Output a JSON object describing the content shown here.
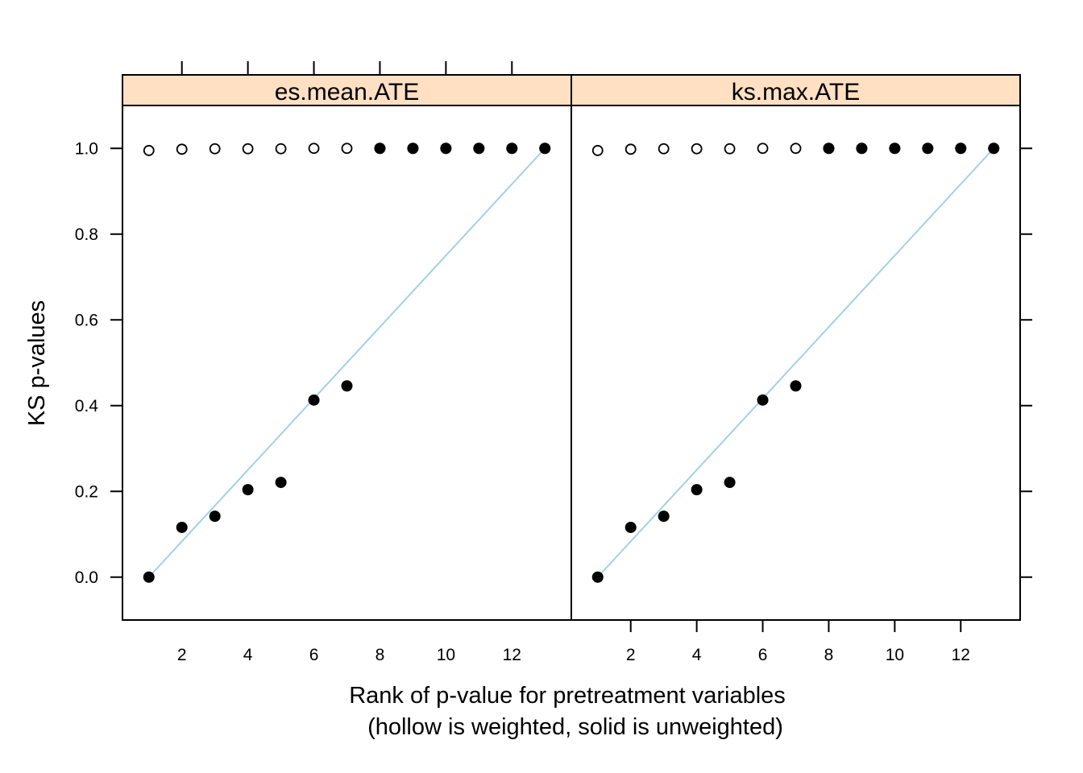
{
  "chart_data": {
    "type": "scatter",
    "xlabel": "Rank of p-value for pretreatment variables",
    "xlabel_line2": "(hollow is weighted, solid is unweighted)",
    "ylabel": "KS p-values",
    "xlim": [
      0.2,
      13.8
    ],
    "ylim": [
      -0.1,
      1.1
    ],
    "x_ticks": [
      2,
      4,
      6,
      8,
      10,
      12
    ],
    "y_ticks": [
      0.0,
      0.2,
      0.4,
      0.6,
      0.8,
      1.0
    ],
    "y_tick_labels": [
      "0.0",
      "0.2",
      "0.4",
      "0.6",
      "0.8",
      "1.0"
    ],
    "grid": false,
    "colors": {
      "strip": "#ffe0c2",
      "reference_line": "#a3d1e3",
      "points": "#000000"
    },
    "panels": [
      {
        "title": "es.mean.ATE",
        "series": [
          {
            "style": "hollow",
            "x": [
              1,
              2,
              3,
              4,
              5,
              6,
              7,
              8,
              9,
              10,
              11,
              12,
              13
            ],
            "y": [
              0.995,
              0.998,
              0.999,
              0.999,
              0.999,
              1.0,
              1.0,
              1.0,
              1.0,
              1.0,
              1.0,
              1.0,
              1.0
            ]
          },
          {
            "style": "solid",
            "x": [
              1,
              2,
              3,
              4,
              5,
              6,
              7,
              8,
              9,
              10,
              11,
              12,
              13
            ],
            "y": [
              0.0,
              0.116,
              0.142,
              0.204,
              0.221,
              0.413,
              0.446,
              1.0,
              1.0,
              1.0,
              1.0,
              1.0,
              1.0
            ]
          }
        ],
        "reference_line": {
          "from": [
            1,
            0
          ],
          "to": [
            13,
            1
          ]
        }
      },
      {
        "title": "ks.max.ATE",
        "series": [
          {
            "style": "hollow",
            "x": [
              1,
              2,
              3,
              4,
              5,
              6,
              7,
              8,
              9,
              10,
              11,
              12,
              13
            ],
            "y": [
              0.995,
              0.998,
              0.999,
              0.999,
              0.999,
              1.0,
              1.0,
              1.0,
              1.0,
              1.0,
              1.0,
              1.0,
              1.0
            ]
          },
          {
            "style": "solid",
            "x": [
              1,
              2,
              3,
              4,
              5,
              6,
              7,
              8,
              9,
              10,
              11,
              12,
              13
            ],
            "y": [
              0.0,
              0.116,
              0.142,
              0.204,
              0.221,
              0.413,
              0.446,
              1.0,
              1.0,
              1.0,
              1.0,
              1.0,
              1.0
            ]
          }
        ],
        "reference_line": {
          "from": [
            1,
            0
          ],
          "to": [
            13,
            1
          ]
        }
      }
    ]
  }
}
